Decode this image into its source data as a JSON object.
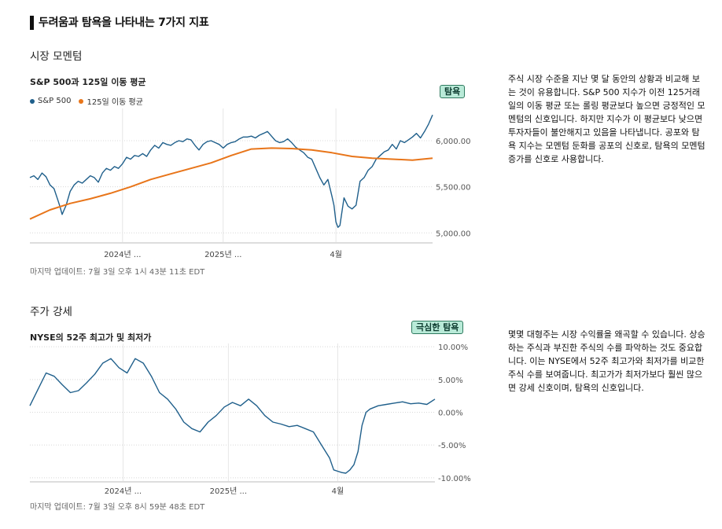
{
  "page": {
    "title": "두려움과 탐욕을 나타내는 7가지 지표"
  },
  "sections": [
    {
      "section_title": "시장 모멘텀",
      "chart_title": "S&P 500과 125일 이동 평균",
      "badge": "탐욕",
      "updated": "마지막 업데이트: 7월 3일 오후 1시 43분 11초 EDT",
      "description": "주식 시장 수준을 지난 몇 달 동안의 상황과 비교해 보는 것이 유용합니다. S&P 500 지수가 이전 125거래일의 이동 평균 또는 롤링 평균보다 높으면 긍정적인 모멘텀의 신호입니다. 하지만 지수가 이 평균보다 낮으면 투자자들이 불안해지고 있음을 나타냅니다. 공포와 탐욕 지수는 모멘텀 둔화를 공포의 신호로, 탐욕의 모멘텀 증가를 신호로 사용합니다.",
      "colors": {
        "sp500": "#1f5f8b",
        "ma125": "#e8751a",
        "badge_bg": "#b9ead8"
      }
    },
    {
      "section_title": "주가 강세",
      "chart_title": "NYSE의 52주 최고가 및 최저가",
      "badge": "극심한 탐욕",
      "updated": "마지막 업데이트: 7월 3일 오후 8시 59분 48초 EDT",
      "description": "몇몇 대형주는 시장 수익률을 왜곡할 수 있습니다. 상승하는 주식과 부진한 주식의 수를 파악하는 것도 중요합니다. 이는 NYSE에서 52주 최고가와 최저가를 비교한 주식 수를 보여줍니다. 최고가가 최저가보다 훨씬 많으면 강세 신호이며, 탐욕의 신호입니다.",
      "colors": {
        "line": "#1f5f8b",
        "badge_bg": "#b9ead8"
      }
    }
  ],
  "chart_data": [
    {
      "type": "line",
      "title": "S&P 500과 125일 이동 평균",
      "x_ticks": [
        "2024년 ...",
        "2025년 ...",
        "4월"
      ],
      "x_tick_positions": [
        0.23,
        0.48,
        0.76
      ],
      "ylim": [
        4900,
        6350
      ],
      "y_ticks": [
        5000,
        5500,
        6000
      ],
      "y_tick_labels": [
        "5,000.00",
        "5,500.00",
        "6,000.00"
      ],
      "grid": true,
      "legend": "top-left",
      "series": [
        {
          "name": "S&P 500",
          "x": [
            0,
            0.01,
            0.02,
            0.03,
            0.04,
            0.05,
            0.06,
            0.07,
            0.075,
            0.08,
            0.085,
            0.09,
            0.1,
            0.11,
            0.12,
            0.13,
            0.14,
            0.15,
            0.16,
            0.17,
            0.18,
            0.19,
            0.2,
            0.21,
            0.22,
            0.23,
            0.24,
            0.25,
            0.26,
            0.27,
            0.28,
            0.29,
            0.3,
            0.31,
            0.32,
            0.33,
            0.34,
            0.35,
            0.36,
            0.37,
            0.38,
            0.39,
            0.4,
            0.41,
            0.42,
            0.43,
            0.44,
            0.45,
            0.46,
            0.47,
            0.48,
            0.49,
            0.5,
            0.51,
            0.52,
            0.53,
            0.54,
            0.55,
            0.56,
            0.57,
            0.58,
            0.59,
            0.6,
            0.61,
            0.62,
            0.63,
            0.64,
            0.65,
            0.66,
            0.67,
            0.68,
            0.69,
            0.7,
            0.71,
            0.72,
            0.73,
            0.74,
            0.75,
            0.755,
            0.76,
            0.765,
            0.77,
            0.78,
            0.79,
            0.8,
            0.81,
            0.82,
            0.83,
            0.84,
            0.85,
            0.86,
            0.87,
            0.88,
            0.89,
            0.9,
            0.91,
            0.92,
            0.93,
            0.94,
            0.95,
            0.96,
            0.97,
            0.98,
            0.99,
            1.0
          ],
          "values": [
            5600,
            5620,
            5580,
            5650,
            5610,
            5520,
            5480,
            5350,
            5280,
            5200,
            5250,
            5300,
            5450,
            5520,
            5560,
            5540,
            5580,
            5620,
            5600,
            5550,
            5650,
            5700,
            5680,
            5720,
            5700,
            5750,
            5820,
            5800,
            5840,
            5830,
            5860,
            5830,
            5900,
            5950,
            5920,
            5980,
            5960,
            5950,
            5980,
            6000,
            5990,
            6020,
            6010,
            5950,
            5900,
            5960,
            5990,
            6000,
            5980,
            5960,
            5920,
            5960,
            5980,
            5990,
            6020,
            6040,
            6040,
            6050,
            6030,
            6060,
            6080,
            6100,
            6050,
            6000,
            5980,
            5990,
            6020,
            5980,
            5930,
            5900,
            5870,
            5820,
            5800,
            5700,
            5600,
            5520,
            5580,
            5400,
            5300,
            5120,
            5060,
            5080,
            5380,
            5290,
            5260,
            5300,
            5560,
            5600,
            5680,
            5720,
            5800,
            5840,
            5880,
            5900,
            5960,
            5910,
            6000,
            5980,
            6010,
            6040,
            6080,
            6030,
            6100,
            6180,
            6280
          ]
        },
        {
          "name": "125일 이동 평균",
          "x": [
            0,
            0.05,
            0.1,
            0.15,
            0.2,
            0.25,
            0.3,
            0.35,
            0.4,
            0.45,
            0.5,
            0.55,
            0.6,
            0.65,
            0.7,
            0.75,
            0.8,
            0.85,
            0.9,
            0.95,
            1.0
          ],
          "values": [
            5150,
            5250,
            5320,
            5370,
            5430,
            5500,
            5580,
            5640,
            5700,
            5760,
            5840,
            5910,
            5920,
            5915,
            5900,
            5870,
            5830,
            5810,
            5800,
            5790,
            5810
          ]
        }
      ]
    },
    {
      "type": "line",
      "title": "NYSE의 52주 최고가 및 최저가",
      "x_ticks": [
        "2024년 ...",
        "2025년 ...",
        "4월"
      ],
      "x_tick_positions": [
        0.23,
        0.49,
        0.76
      ],
      "ylim": [
        -10.5,
        10.5
      ],
      "y_ticks": [
        -10,
        -5,
        0,
        5,
        10
      ],
      "y_tick_labels": [
        "-10.00%",
        "-5.00%",
        "0.00%",
        "5.00%",
        "10.00%"
      ],
      "grid": true,
      "series": [
        {
          "name": "",
          "x": [
            0,
            0.02,
            0.04,
            0.06,
            0.08,
            0.1,
            0.12,
            0.14,
            0.16,
            0.18,
            0.2,
            0.22,
            0.24,
            0.26,
            0.28,
            0.3,
            0.32,
            0.34,
            0.36,
            0.38,
            0.4,
            0.42,
            0.44,
            0.46,
            0.48,
            0.5,
            0.52,
            0.54,
            0.56,
            0.58,
            0.6,
            0.62,
            0.64,
            0.66,
            0.68,
            0.7,
            0.72,
            0.74,
            0.75,
            0.76,
            0.77,
            0.78,
            0.79,
            0.8,
            0.81,
            0.82,
            0.83,
            0.84,
            0.86,
            0.88,
            0.9,
            0.92,
            0.94,
            0.96,
            0.98,
            1.0
          ],
          "values": [
            1.0,
            3.5,
            6.0,
            5.5,
            4.2,
            3.0,
            3.3,
            4.5,
            5.8,
            7.5,
            8.2,
            6.8,
            6.0,
            8.2,
            7.5,
            5.5,
            3.0,
            2.0,
            0.5,
            -1.5,
            -2.5,
            -3.0,
            -1.5,
            -0.5,
            0.8,
            1.5,
            1.0,
            2.0,
            1.0,
            -0.5,
            -1.5,
            -1.8,
            -2.2,
            -2.0,
            -2.5,
            -3.0,
            -5.0,
            -7.0,
            -8.8,
            -9.0,
            -9.2,
            -9.3,
            -8.8,
            -8.0,
            -6.0,
            -2.0,
            0.0,
            0.5,
            1.0,
            1.2,
            1.4,
            1.6,
            1.3,
            1.4,
            1.2,
            2.0
          ]
        }
      ]
    }
  ]
}
